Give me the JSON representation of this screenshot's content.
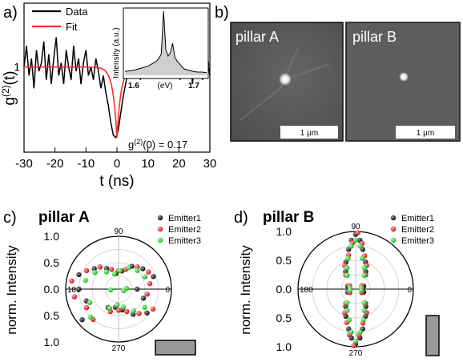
{
  "panel_labels": {
    "a": "a)",
    "b": "b)",
    "c": "c)",
    "d": "d)"
  },
  "chart_data": [
    {
      "type": "line",
      "panel": "a",
      "xlabel": "t (ns)",
      "ylabel": "g(2)(t)",
      "ylabel_main": "g",
      "ylabel_sup": "(2)",
      "ylabel_arg": "(t)",
      "xlim": [
        -30,
        30
      ],
      "ylim": [
        0,
        1.75
      ],
      "xticks": [
        -30,
        -20,
        -10,
        0,
        10,
        20,
        30
      ],
      "yticks": [
        1
      ],
      "legend": [
        "Data",
        "Fit"
      ],
      "annotation": "g(2)(0) = 0.17",
      "annotation_main": "g",
      "annotation_sup": "(2)",
      "annotation_tail": "(0) = 0.17",
      "series": [
        {
          "name": "Data",
          "color": "#000000",
          "x": [
            -30,
            -29.2,
            -28.4,
            -27.6,
            -26.8,
            -26,
            -25.2,
            -24.4,
            -23.6,
            -22.8,
            -22,
            -21.2,
            -20.4,
            -19.6,
            -18.8,
            -18,
            -17.2,
            -16.4,
            -15.6,
            -14.8,
            -14,
            -13.2,
            -12.4,
            -11.6,
            -10.8,
            -10,
            -9.2,
            -8.4,
            -7.6,
            -6.8,
            -6,
            -5.2,
            -4.4,
            -3.6,
            -2.8,
            -2,
            -1.2,
            -0.4,
            0.4,
            1.2,
            2,
            2.8,
            3.6,
            4.4,
            5.2,
            6,
            6.8,
            7.6,
            8.4,
            9.2,
            10,
            10.8,
            11.6,
            12.4,
            13.2,
            14,
            14.8,
            15.6,
            16.4,
            17.2,
            18,
            18.8,
            19.6,
            20.4,
            21.2,
            22,
            22.8,
            23.6,
            24.4,
            25.2,
            26,
            26.8,
            27.6,
            28.4,
            29.2,
            30
          ],
          "y": [
            1.0,
            1.25,
            0.9,
            1.1,
            0.75,
            1.2,
            0.95,
            1.05,
            1.3,
            0.85,
            1.15,
            0.8,
            1.1,
            1.35,
            0.9,
            1.05,
            0.8,
            1.2,
            1.0,
            0.85,
            1.25,
            0.95,
            1.1,
            0.8,
            1.05,
            1.2,
            0.9,
            1.0,
            0.85,
            1.1,
            0.95,
            0.75,
            0.9,
            0.7,
            0.55,
            0.35,
            0.2,
            0.17,
            0.25,
            0.45,
            0.65,
            0.8,
            0.95,
            1.1,
            0.9,
            1.25,
            1.0,
            0.85,
            1.3,
            1.05,
            0.9,
            1.4,
            1.1,
            0.95,
            1.5,
            1.2,
            1.0,
            1.35,
            0.9,
            1.1,
            1.45,
            0.95,
            1.2,
            0.85,
            1.3,
            1.05,
            0.9,
            1.15,
            0.8,
            1.1,
            0.95,
            1.25,
            0.85,
            1.0,
            1.15,
            0.9
          ]
        },
        {
          "name": "Fit",
          "color": "#ff2a2a",
          "depth": 0.83,
          "tau": 1.3
        }
      ],
      "inset": {
        "ylabel": "Intensity (a.u.)",
        "xlabel": "(eV)",
        "xticks": [
          "1.6",
          "1.7"
        ],
        "xlim": [
          1.56,
          1.74
        ],
        "x": [
          1.56,
          1.57,
          1.58,
          1.59,
          1.6,
          1.61,
          1.62,
          1.63,
          1.635,
          1.64,
          1.645,
          1.65,
          1.655,
          1.66,
          1.665,
          1.67,
          1.675,
          1.68,
          1.685,
          1.69,
          1.7,
          1.71,
          1.72,
          1.73,
          1.74
        ],
        "y": [
          0.06,
          0.07,
          0.08,
          0.1,
          0.12,
          0.14,
          0.18,
          0.22,
          0.27,
          0.33,
          1.0,
          0.4,
          0.3,
          0.35,
          0.5,
          0.28,
          0.22,
          0.18,
          0.14,
          0.1,
          0.08,
          0.06,
          0.05,
          0.05,
          0.04
        ]
      }
    },
    {
      "type": "scatter",
      "panel": "c",
      "title": "pillar A",
      "ylabel": "norm. Intensity",
      "radial_ticks": [
        "1.0",
        "0.5",
        "0.0",
        "0.5",
        "1.0"
      ],
      "angle_labels": [
        "90",
        "180",
        "0",
        "270"
      ],
      "legend": [
        "Emitter1",
        "Emitter2",
        "Emitter3"
      ],
      "series": [
        {
          "name": "Emitter1",
          "color": "#222222",
          "angles_deg": [
            0,
            20,
            40,
            60,
            80,
            100,
            120,
            140,
            160,
            180,
            200,
            220,
            240,
            260,
            280,
            300,
            320,
            340
          ],
          "values": [
            0.35,
            0.7,
            0.6,
            0.5,
            0.35,
            0.3,
            0.45,
            0.6,
            0.8,
            0.75,
            0.65,
            0.9,
            0.4,
            0.35,
            0.4,
            0.55,
            0.7,
            0.5
          ]
        },
        {
          "name": "Emitter2",
          "color": "#e02020",
          "angles_deg": [
            10,
            30,
            50,
            70,
            90,
            110,
            130,
            150,
            170,
            190,
            210,
            230,
            250,
            270,
            290,
            310,
            330,
            350
          ],
          "values": [
            0.6,
            0.65,
            0.55,
            0.4,
            0.35,
            0.4,
            0.55,
            0.7,
            0.9,
            0.85,
            0.7,
            0.75,
            0.45,
            0.4,
            0.45,
            0.6,
            0.75,
            0.55
          ]
        },
        {
          "name": "Emitter3",
          "color": "#22cc22",
          "angles_deg": [
            5,
            25,
            45,
            65,
            85,
            105,
            125,
            145,
            165,
            185,
            205,
            225,
            245,
            265,
            285,
            305,
            325,
            345
          ],
          "values": [
            0.15,
            0.55,
            0.5,
            0.45,
            0.35,
            0.3,
            0.4,
            0.55,
            0.65,
            0.15,
            0.6,
            0.75,
            0.4,
            0.3,
            0.35,
            0.5,
            0.6,
            0.1
          ]
        }
      ],
      "bar_orientation": "horizontal"
    },
    {
      "type": "scatter",
      "panel": "d",
      "title": "pillar B",
      "ylabel": "norm. Intensity",
      "radial_ticks": [
        "1.0",
        "0.5",
        "0.0",
        "0.5",
        "1.0"
      ],
      "angle_labels": [
        "90",
        "180",
        "0",
        "270"
      ],
      "legend": [
        "Emitter1",
        "Emitter2",
        "Emitter3"
      ],
      "series": [
        {
          "name": "Emitter1",
          "color": "#222222",
          "angles_deg": [
            80,
            85,
            90,
            95,
            100,
            70,
            110,
            60,
            120,
            260,
            265,
            270,
            275,
            280,
            250,
            290,
            240,
            300,
            20,
            160,
            200,
            340
          ],
          "values": [
            0.7,
            0.85,
            0.95,
            0.85,
            0.7,
            0.5,
            0.5,
            0.35,
            0.35,
            0.7,
            0.85,
            0.95,
            0.85,
            0.7,
            0.5,
            0.5,
            0.35,
            0.35,
            0.15,
            0.15,
            0.15,
            0.15
          ]
        },
        {
          "name": "Emitter2",
          "color": "#e02020",
          "angles_deg": [
            75,
            82,
            88,
            94,
            102,
            65,
            115,
            55,
            125,
            255,
            262,
            268,
            274,
            282,
            245,
            295,
            235,
            305,
            30,
            150,
            210,
            330
          ],
          "values": [
            0.6,
            0.8,
            0.98,
            0.8,
            0.6,
            0.45,
            0.45,
            0.3,
            0.3,
            0.6,
            0.8,
            0.98,
            0.8,
            0.6,
            0.45,
            0.45,
            0.3,
            0.3,
            0.12,
            0.12,
            0.12,
            0.12
          ]
        },
        {
          "name": "Emitter3",
          "color": "#22cc22",
          "angles_deg": [
            78,
            84,
            90,
            96,
            104,
            68,
            112,
            58,
            122,
            258,
            264,
            270,
            276,
            284,
            248,
            292,
            238,
            302,
            10,
            170,
            190,
            350
          ],
          "values": [
            0.55,
            0.75,
            0.85,
            0.75,
            0.55,
            0.4,
            0.4,
            0.28,
            0.28,
            0.55,
            0.75,
            0.9,
            0.75,
            0.55,
            0.4,
            0.4,
            0.28,
            0.28,
            0.1,
            0.1,
            0.1,
            0.1
          ]
        }
      ],
      "bar_orientation": "vertical"
    }
  ],
  "images": [
    {
      "label": "pillar A",
      "scale": "1 μm"
    },
    {
      "label": "pillar B",
      "scale": "1 μm"
    }
  ]
}
